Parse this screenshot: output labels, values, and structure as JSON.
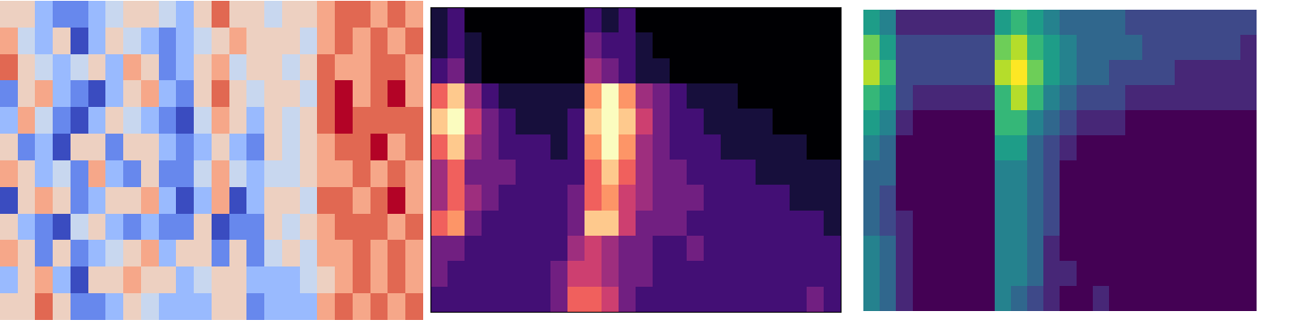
{
  "chart_data": [
    {
      "type": "heatmap",
      "color": "coolwarm",
      "tick_labels": false,
      "cells": [
        [
          1,
          1,
          -1,
          -2,
          -2,
          -1,
          0,
          1,
          1,
          0,
          -1,
          1,
          3,
          1,
          1,
          0,
          1,
          1,
          2,
          3,
          3,
          2,
          3,
          2
        ],
        [
          2,
          0,
          -1,
          1,
          -3,
          -1,
          1,
          0,
          -1,
          -2,
          -1,
          0,
          1,
          2,
          1,
          1,
          1,
          0,
          2,
          3,
          2,
          3,
          2,
          3
        ],
        [
          3,
          1,
          0,
          -1,
          0,
          1,
          -1,
          2,
          1,
          -2,
          -1,
          1,
          2,
          0,
          1,
          1,
          0,
          1,
          3,
          2,
          2,
          3,
          3,
          2
        ],
        [
          -2,
          1,
          2,
          -1,
          -2,
          -3,
          -1,
          1,
          2,
          -1,
          -2,
          1,
          3,
          1,
          0,
          1,
          1,
          0,
          3,
          4,
          2,
          3,
          4,
          2
        ],
        [
          -1,
          2,
          0,
          -2,
          -3,
          -1,
          1,
          0,
          -1,
          -2,
          -3,
          0,
          2,
          1,
          -1,
          1,
          0,
          1,
          3,
          4,
          3,
          3,
          3,
          3
        ],
        [
          1,
          -2,
          -1,
          -3,
          1,
          1,
          -2,
          1,
          1,
          -1,
          -2,
          -1,
          1,
          -1,
          -2,
          1,
          0,
          1,
          2,
          3,
          3,
          4,
          2,
          3
        ],
        [
          2,
          1,
          -1,
          0,
          -2,
          2,
          -1,
          -2,
          1,
          -2,
          -2,
          0,
          2,
          0,
          -1,
          0,
          0,
          1,
          2,
          2,
          3,
          2,
          3,
          2
        ],
        [
          -3,
          1,
          2,
          1,
          -2,
          -1,
          1,
          1,
          2,
          -1,
          -3,
          -1,
          2,
          -3,
          -1,
          1,
          1,
          0,
          3,
          3,
          2,
          3,
          4,
          2
        ],
        [
          1,
          -1,
          -2,
          -3,
          0,
          1,
          -1,
          -2,
          -1,
          -2,
          -2,
          1,
          -3,
          -2,
          -2,
          1,
          0,
          1,
          2,
          3,
          3,
          3,
          2,
          3
        ],
        [
          2,
          1,
          -2,
          1,
          -2,
          -1,
          0,
          1,
          2,
          -1,
          1,
          1,
          -2,
          1,
          -2,
          0,
          1,
          0,
          2,
          2,
          3,
          2,
          3,
          2
        ],
        [
          -1,
          1,
          2,
          -1,
          -3,
          1,
          1,
          2,
          1,
          1,
          -1,
          0,
          1,
          1,
          -1,
          -1,
          -1,
          0,
          1,
          2,
          3,
          2,
          3,
          2
        ],
        [
          1,
          1,
          3,
          1,
          -2,
          -2,
          -1,
          1,
          0,
          -1,
          -1,
          -1,
          1,
          1,
          -2,
          -1,
          -1,
          -1,
          2,
          3,
          2,
          3,
          2,
          3
        ]
      ]
    },
    {
      "type": "heatmap",
      "color": "magma",
      "tick_labels": false,
      "cells": [
        [
          1,
          2,
          0,
          0,
          0,
          0,
          0,
          0,
          0,
          2,
          1,
          2,
          0,
          0,
          0,
          0,
          0,
          0,
          0,
          0,
          0,
          0,
          0,
          0
        ],
        [
          1,
          2,
          1,
          0,
          0,
          0,
          0,
          0,
          0,
          3,
          2,
          2,
          1,
          0,
          0,
          0,
          0,
          0,
          0,
          0,
          0,
          0,
          0,
          0
        ],
        [
          2,
          3,
          1,
          0,
          0,
          0,
          0,
          0,
          0,
          4,
          3,
          2,
          1,
          1,
          0,
          0,
          0,
          0,
          0,
          0,
          0,
          0,
          0,
          0
        ],
        [
          6,
          8,
          4,
          2,
          1,
          1,
          1,
          1,
          1,
          7,
          9,
          7,
          4,
          3,
          2,
          1,
          1,
          1,
          0,
          0,
          0,
          0,
          0,
          0
        ],
        [
          8,
          9,
          5,
          3,
          2,
          1,
          1,
          1,
          2,
          8,
          9,
          8,
          5,
          3,
          2,
          2,
          1,
          1,
          1,
          1,
          0,
          0,
          0,
          0
        ],
        [
          6,
          8,
          4,
          3,
          2,
          2,
          2,
          1,
          2,
          7,
          9,
          7,
          4,
          3,
          2,
          2,
          2,
          1,
          1,
          1,
          1,
          1,
          0,
          0
        ],
        [
          4,
          6,
          3,
          3,
          3,
          2,
          2,
          2,
          2,
          6,
          8,
          6,
          4,
          3,
          3,
          2,
          2,
          2,
          2,
          1,
          1,
          1,
          1,
          1
        ],
        [
          4,
          6,
          4,
          3,
          2,
          2,
          2,
          2,
          3,
          6,
          7,
          5,
          4,
          3,
          3,
          3,
          2,
          2,
          2,
          2,
          2,
          1,
          1,
          1
        ],
        [
          6,
          7,
          3,
          2,
          2,
          2,
          2,
          2,
          3,
          8,
          8,
          5,
          3,
          3,
          3,
          2,
          2,
          2,
          2,
          2,
          2,
          2,
          2,
          1
        ],
        [
          3,
          3,
          2,
          2,
          2,
          2,
          2,
          2,
          4,
          5,
          4,
          3,
          3,
          2,
          2,
          3,
          2,
          2,
          2,
          2,
          2,
          2,
          2,
          2
        ],
        [
          3,
          2,
          2,
          2,
          2,
          2,
          2,
          3,
          5,
          5,
          4,
          3,
          3,
          2,
          2,
          2,
          2,
          2,
          2,
          2,
          2,
          2,
          2,
          2
        ],
        [
          2,
          2,
          2,
          2,
          2,
          2,
          2,
          3,
          6,
          6,
          5,
          3,
          2,
          2,
          2,
          2,
          2,
          2,
          2,
          2,
          2,
          2,
          3,
          2
        ]
      ]
    },
    {
      "type": "heatmap",
      "color": "viridis",
      "tick_labels": false,
      "cells": [
        [
          5,
          4,
          1,
          1,
          1,
          1,
          1,
          1,
          5,
          6,
          5,
          4,
          3,
          3,
          3,
          3,
          2,
          2,
          2,
          2,
          2,
          2,
          2,
          2
        ],
        [
          7,
          5,
          2,
          2,
          2,
          2,
          2,
          2,
          7,
          8,
          6,
          5,
          4,
          3,
          3,
          3,
          3,
          2,
          2,
          2,
          2,
          2,
          2,
          1
        ],
        [
          8,
          6,
          2,
          2,
          2,
          2,
          2,
          2,
          8,
          9,
          7,
          5,
          4,
          3,
          3,
          2,
          2,
          2,
          2,
          1,
          1,
          1,
          1,
          1
        ],
        [
          6,
          5,
          2,
          1,
          1,
          1,
          1,
          1,
          6,
          8,
          6,
          4,
          3,
          2,
          2,
          2,
          1,
          1,
          1,
          1,
          1,
          1,
          1,
          1
        ],
        [
          5,
          4,
          1,
          0,
          0,
          0,
          0,
          0,
          6,
          6,
          4,
          3,
          2,
          1,
          1,
          1,
          0,
          0,
          0,
          0,
          0,
          0,
          0,
          0
        ],
        [
          4,
          3,
          0,
          0,
          0,
          0,
          0,
          0,
          5,
          5,
          3,
          2,
          1,
          0,
          0,
          0,
          0,
          0,
          0,
          0,
          0,
          0,
          0,
          0
        ],
        [
          3,
          3,
          0,
          0,
          0,
          0,
          0,
          0,
          4,
          4,
          3,
          2,
          0,
          0,
          0,
          0,
          0,
          0,
          0,
          0,
          0,
          0,
          0,
          0
        ],
        [
          3,
          2,
          0,
          0,
          0,
          0,
          0,
          0,
          4,
          4,
          3,
          2,
          0,
          0,
          0,
          0,
          0,
          0,
          0,
          0,
          0,
          0,
          0,
          0
        ],
        [
          3,
          2,
          1,
          0,
          0,
          0,
          0,
          0,
          4,
          4,
          3,
          2,
          0,
          0,
          0,
          0,
          0,
          0,
          0,
          0,
          0,
          0,
          0,
          0
        ],
        [
          4,
          3,
          1,
          0,
          0,
          0,
          0,
          0,
          4,
          4,
          3,
          1,
          0,
          0,
          0,
          0,
          0,
          0,
          0,
          0,
          0,
          0,
          0,
          0
        ],
        [
          4,
          3,
          1,
          0,
          0,
          0,
          0,
          0,
          4,
          4,
          3,
          1,
          1,
          0,
          0,
          0,
          0,
          0,
          0,
          0,
          0,
          0,
          0,
          0
        ],
        [
          4,
          3,
          1,
          0,
          0,
          0,
          0,
          0,
          4,
          3,
          2,
          1,
          0,
          0,
          1,
          0,
          0,
          0,
          0,
          0,
          0,
          0,
          0,
          0
        ]
      ]
    }
  ]
}
